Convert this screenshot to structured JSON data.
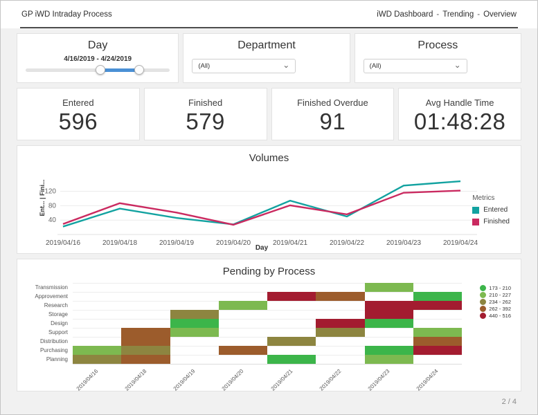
{
  "header": {
    "title": "GP iWD Intraday Process",
    "nav": {
      "items": [
        "iWD Dashboard",
        "Trending",
        "Overview"
      ],
      "separator": "-"
    }
  },
  "filters": {
    "day": {
      "label": "Day",
      "range_label": "4/16/2019 - 4/24/2019"
    },
    "department": {
      "label": "Department",
      "value": "(All)"
    },
    "process": {
      "label": "Process",
      "value": "(All)"
    }
  },
  "kpis": [
    {
      "label": "Entered",
      "value": "596"
    },
    {
      "label": "Finished",
      "value": "579"
    },
    {
      "label": "Finished Overdue",
      "value": "91"
    },
    {
      "label": "Avg Handle Time",
      "value": "01:48:28"
    }
  ],
  "chart_data": [
    {
      "type": "line",
      "title": "Volumes",
      "xlabel": "Day",
      "ylabel": "Ent...   |   Fini...",
      "x": [
        "2019/04/16",
        "2019/04/18",
        "2019/04/19",
        "2019/04/20",
        "2019/04/21",
        "2019/04/22",
        "2019/04/23",
        "2019/04/24"
      ],
      "yticks": [
        40,
        80,
        120
      ],
      "ylim": [
        0,
        160
      ],
      "legend_title": "Metrics",
      "legend_position": "right",
      "grid": true,
      "series": [
        {
          "name": "Entered",
          "color": "#12a2a0",
          "values": [
            22,
            72,
            46,
            28,
            94,
            50,
            136,
            148
          ]
        },
        {
          "name": "Finished",
          "color": "#ca2a60",
          "values": [
            29,
            87,
            61,
            27,
            81,
            56,
            116,
            122
          ]
        }
      ]
    },
    {
      "type": "heatmap",
      "title": "Pending by Process",
      "x": [
        "2019/04/16",
        "2019/04/18",
        "2019/04/19",
        "2019/04/20",
        "2019/04/21",
        "2019/04/22",
        "2019/04/23",
        "2019/04/24"
      ],
      "palette": {
        "g1": "#3cb54a",
        "g2": "#7db950",
        "g3": "#8d8540",
        "g4": "#9c5c2c",
        "g5": "#a31c30"
      },
      "legend": [
        {
          "color": "g1",
          "label": "173 - 210"
        },
        {
          "color": "g2",
          "label": "210 - 227"
        },
        {
          "color": "g3",
          "label": "234 - 262"
        },
        {
          "color": "g4",
          "label": "262 - 392"
        },
        {
          "color": "g5",
          "label": "440 - 516"
        }
      ],
      "rows": [
        {
          "label": "Transmission",
          "cells": [
            null,
            null,
            null,
            null,
            null,
            null,
            "g2",
            null
          ]
        },
        {
          "label": "Approvement",
          "cells": [
            null,
            null,
            null,
            null,
            "g5",
            "g4",
            null,
            "g1"
          ]
        },
        {
          "label": "Research",
          "cells": [
            null,
            null,
            null,
            "g2",
            null,
            null,
            "g5",
            "g5"
          ]
        },
        {
          "label": "Storage",
          "cells": [
            null,
            null,
            "g3",
            null,
            null,
            null,
            "g5",
            null
          ]
        },
        {
          "label": "Design",
          "cells": [
            null,
            null,
            "g1",
            null,
            null,
            "g5",
            "g1",
            null
          ]
        },
        {
          "label": "Support",
          "cells": [
            null,
            "g4",
            "g2",
            null,
            null,
            "g3",
            null,
            "g2"
          ]
        },
        {
          "label": "Distribution",
          "cells": [
            null,
            "g4",
            null,
            null,
            "g3",
            null,
            null,
            "g4"
          ]
        },
        {
          "label": "Purchasing",
          "cells": [
            "g2",
            "g3",
            null,
            "g4",
            null,
            null,
            "g1",
            "g5"
          ]
        },
        {
          "label": "Planning",
          "cells": [
            "g3",
            "g4",
            null,
            null,
            "g1",
            null,
            "g2",
            null
          ]
        }
      ]
    }
  ],
  "footer": {
    "page": "2 / 4"
  }
}
